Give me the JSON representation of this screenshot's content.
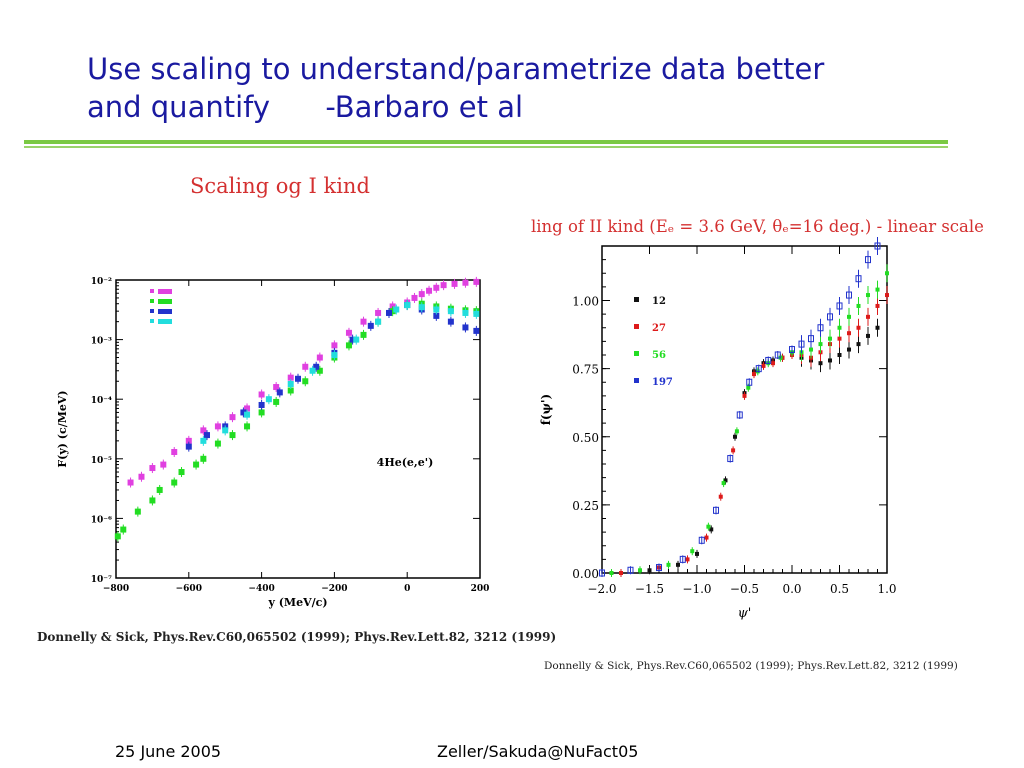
{
  "slide": {
    "title_line1": "Use scaling to understand/parametrize data better",
    "title_line2": "and quantify      -Barbaro et al",
    "footer_date": "25 June 2005",
    "footer_author": "Zeller/Sakuda@NuFact05"
  },
  "colors": {
    "title": "#1a1aa0",
    "rule": "#7ac943",
    "caption": "#d43030"
  },
  "chart_data": [
    {
      "type": "scatter",
      "caption": "Scaling og I kind",
      "ylabel": "F(y) (c/MeV)",
      "xlabel": "y (MeV/c)",
      "annotation": "4He(e,e')",
      "yscale": "log",
      "xlim": [
        -800,
        200
      ],
      "ylim": [
        1e-07,
        0.01
      ],
      "xticks": [
        -800,
        -600,
        -400,
        -200,
        0,
        200
      ],
      "xtick_labels": [
        "−800",
        "−600",
        "−400",
        "−200",
        "0",
        "200"
      ],
      "yticks": [
        1e-07,
        1e-06,
        1e-05,
        0.0001,
        0.001,
        0.01
      ],
      "ytick_labels": [
        "10⁻⁷",
        "10⁻⁶",
        "10⁻⁵",
        "10⁻⁴",
        "10⁻³",
        "10⁻²"
      ],
      "legend_position": "top-left",
      "series": [
        {
          "color": "#e040e0",
          "points": [
            [
              -760,
              4e-06
            ],
            [
              -730,
              5e-06
            ],
            [
              -700,
              7e-06
            ],
            [
              -670,
              8e-06
            ],
            [
              -640,
              1.3e-05
            ],
            [
              -600,
              2e-05
            ],
            [
              -560,
              3e-05
            ],
            [
              -520,
              3.5e-05
            ],
            [
              -480,
              5e-05
            ],
            [
              -440,
              7e-05
            ],
            [
              -400,
              0.00012
            ],
            [
              -360,
              0.00016
            ],
            [
              -320,
              0.00023
            ],
            [
              -280,
              0.00035
            ],
            [
              -240,
              0.0005
            ],
            [
              -200,
              0.0008
            ],
            [
              -160,
              0.0013
            ],
            [
              -120,
              0.002
            ],
            [
              -80,
              0.0028
            ],
            [
              -40,
              0.0036
            ],
            [
              0,
              0.0042
            ],
            [
              20,
              0.005
            ],
            [
              40,
              0.0058
            ],
            [
              60,
              0.0066
            ],
            [
              80,
              0.0074
            ],
            [
              100,
              0.0082
            ],
            [
              130,
              0.0086
            ],
            [
              160,
              0.009
            ],
            [
              190,
              0.0093
            ]
          ]
        },
        {
          "color": "#22dd22",
          "points": [
            [
              -795,
              5e-07
            ],
            [
              -780,
              6.5e-07
            ],
            [
              -740,
              1.3e-06
            ],
            [
              -700,
              2e-06
            ],
            [
              -680,
              3e-06
            ],
            [
              -640,
              4e-06
            ],
            [
              -620,
              6e-06
            ],
            [
              -580,
              8e-06
            ],
            [
              -560,
              1e-05
            ],
            [
              -520,
              1.8e-05
            ],
            [
              -480,
              2.5e-05
            ],
            [
              -440,
              3.5e-05
            ],
            [
              -400,
              6e-05
            ],
            [
              -360,
              9e-05
            ],
            [
              -320,
              0.00014
            ],
            [
              -280,
              0.0002
            ],
            [
              -240,
              0.0003
            ],
            [
              -200,
              0.0005
            ],
            [
              -160,
              0.0008
            ],
            [
              -120,
              0.0012
            ],
            [
              -80,
              0.002
            ],
            [
              -40,
              0.003
            ],
            [
              0,
              0.0038
            ],
            [
              40,
              0.004
            ],
            [
              80,
              0.0036
            ],
            [
              120,
              0.0033
            ],
            [
              160,
              0.0031
            ],
            [
              190,
              0.003
            ]
          ]
        },
        {
          "color": "#2233cc",
          "points": [
            [
              -600,
              1.6e-05
            ],
            [
              -550,
              2.5e-05
            ],
            [
              -500,
              3.5e-05
            ],
            [
              -450,
              6e-05
            ],
            [
              -400,
              8e-05
            ],
            [
              -350,
              0.00013
            ],
            [
              -300,
              0.00022
            ],
            [
              -250,
              0.00035
            ],
            [
              -200,
              0.0006
            ],
            [
              -150,
              0.001
            ],
            [
              -100,
              0.0017
            ],
            [
              -50,
              0.0028
            ],
            [
              0,
              0.0038
            ],
            [
              40,
              0.0032
            ],
            [
              80,
              0.0025
            ],
            [
              120,
              0.002
            ],
            [
              160,
              0.0016
            ],
            [
              190,
              0.0014
            ]
          ]
        },
        {
          "color": "#22dddd",
          "points": [
            [
              -560,
              2e-05
            ],
            [
              -500,
              3e-05
            ],
            [
              -440,
              5.5e-05
            ],
            [
              -380,
              0.0001
            ],
            [
              -320,
              0.00018
            ],
            [
              -260,
              0.0003
            ],
            [
              -200,
              0.00055
            ],
            [
              -140,
              0.001
            ],
            [
              -80,
              0.002
            ],
            [
              -30,
              0.0032
            ],
            [
              0,
              0.0038
            ],
            [
              40,
              0.0035
            ],
            [
              80,
              0.0032
            ],
            [
              120,
              0.003
            ],
            [
              160,
              0.0028
            ],
            [
              190,
              0.0027
            ]
          ]
        }
      ]
    },
    {
      "type": "scatter",
      "caption": "ling of II kind (Eₑ = 3.6 GeV, θₑ=16 deg.) - linear scale",
      "ylabel": "f(ψ')",
      "xlabel": "ψ'",
      "yscale": "linear",
      "xlim": [
        -2.0,
        1.0
      ],
      "ylim": [
        0.0,
        1.2
      ],
      "xticks": [
        -2.0,
        -1.5,
        -1.0,
        -0.5,
        0.0,
        0.5,
        1.0
      ],
      "xtick_labels": [
        "−2.0",
        "−1.5",
        "−1.0",
        "−0.5",
        "0.0",
        "0.5",
        "1.0"
      ],
      "yticks": [
        0.0,
        0.25,
        0.5,
        0.75,
        1.0
      ],
      "ytick_labels": [
        "0.00",
        "0.25",
        "0.50",
        "0.75",
        "1.00"
      ],
      "legend_position": "top-left",
      "series": [
        {
          "name": "12",
          "color": "#111111",
          "points": [
            [
              -1.8,
              0.0
            ],
            [
              -1.5,
              0.01
            ],
            [
              -1.2,
              0.03
            ],
            [
              -1.0,
              0.07
            ],
            [
              -0.85,
              0.16
            ],
            [
              -0.7,
              0.34
            ],
            [
              -0.6,
              0.5
            ],
            [
              -0.5,
              0.66
            ],
            [
              -0.4,
              0.74
            ],
            [
              -0.3,
              0.77
            ],
            [
              -0.2,
              0.78
            ],
            [
              -0.1,
              0.79
            ],
            [
              0.0,
              0.8
            ],
            [
              0.1,
              0.79
            ],
            [
              0.2,
              0.78
            ],
            [
              0.3,
              0.77
            ],
            [
              0.4,
              0.78
            ],
            [
              0.5,
              0.8
            ],
            [
              0.6,
              0.82
            ],
            [
              0.7,
              0.84
            ],
            [
              0.8,
              0.87
            ],
            [
              0.9,
              0.9
            ]
          ]
        },
        {
          "name": "27",
          "color": "#dd1a1a",
          "points": [
            [
              -1.8,
              0.0
            ],
            [
              -1.4,
              0.02
            ],
            [
              -1.1,
              0.05
            ],
            [
              -0.9,
              0.13
            ],
            [
              -0.75,
              0.28
            ],
            [
              -0.62,
              0.45
            ],
            [
              -0.5,
              0.65
            ],
            [
              -0.4,
              0.73
            ],
            [
              -0.3,
              0.76
            ],
            [
              -0.2,
              0.77
            ],
            [
              -0.1,
              0.79
            ],
            [
              0.0,
              0.8
            ],
            [
              0.1,
              0.8
            ],
            [
              0.2,
              0.79
            ],
            [
              0.3,
              0.81
            ],
            [
              0.4,
              0.84
            ],
            [
              0.5,
              0.86
            ],
            [
              0.6,
              0.88
            ],
            [
              0.7,
              0.9
            ],
            [
              0.8,
              0.94
            ],
            [
              0.9,
              0.98
            ],
            [
              1.0,
              1.02
            ]
          ]
        },
        {
          "name": "56",
          "color": "#22dd22",
          "points": [
            [
              -1.9,
              0.0
            ],
            [
              -1.6,
              0.01
            ],
            [
              -1.3,
              0.03
            ],
            [
              -1.05,
              0.08
            ],
            [
              -0.88,
              0.17
            ],
            [
              -0.72,
              0.33
            ],
            [
              -0.58,
              0.52
            ],
            [
              -0.46,
              0.68
            ],
            [
              -0.36,
              0.74
            ],
            [
              -0.25,
              0.77
            ],
            [
              -0.12,
              0.79
            ],
            [
              0.0,
              0.81
            ],
            [
              0.1,
              0.81
            ],
            [
              0.2,
              0.82
            ],
            [
              0.3,
              0.84
            ],
            [
              0.4,
              0.86
            ],
            [
              0.5,
              0.9
            ],
            [
              0.6,
              0.94
            ],
            [
              0.7,
              0.98
            ],
            [
              0.8,
              1.02
            ],
            [
              0.9,
              1.04
            ],
            [
              1.0,
              1.1
            ]
          ]
        },
        {
          "name": "197",
          "color": "#2233cc",
          "points": [
            [
              -2.0,
              0.0
            ],
            [
              -1.7,
              0.01
            ],
            [
              -1.4,
              0.02
            ],
            [
              -1.15,
              0.05
            ],
            [
              -0.95,
              0.12
            ],
            [
              -0.8,
              0.23
            ],
            [
              -0.65,
              0.42
            ],
            [
              -0.55,
              0.58
            ],
            [
              -0.45,
              0.7
            ],
            [
              -0.35,
              0.75
            ],
            [
              -0.25,
              0.78
            ],
            [
              -0.15,
              0.8
            ],
            [
              0.0,
              0.82
            ],
            [
              0.1,
              0.84
            ],
            [
              0.2,
              0.86
            ],
            [
              0.3,
              0.9
            ],
            [
              0.4,
              0.94
            ],
            [
              0.5,
              0.98
            ],
            [
              0.6,
              1.02
            ],
            [
              0.7,
              1.08
            ],
            [
              0.8,
              1.15
            ],
            [
              0.9,
              1.2
            ]
          ]
        }
      ]
    }
  ],
  "references": {
    "left": "Donnelly & Sick, Phys.Rev.C60,065502 (1999); Phys.Rev.Lett.82, 3212 (1999)",
    "right": "Donnelly & Sick, Phys.Rev.C60,065502 (1999); Phys.Rev.Lett.82, 3212 (1999)"
  }
}
